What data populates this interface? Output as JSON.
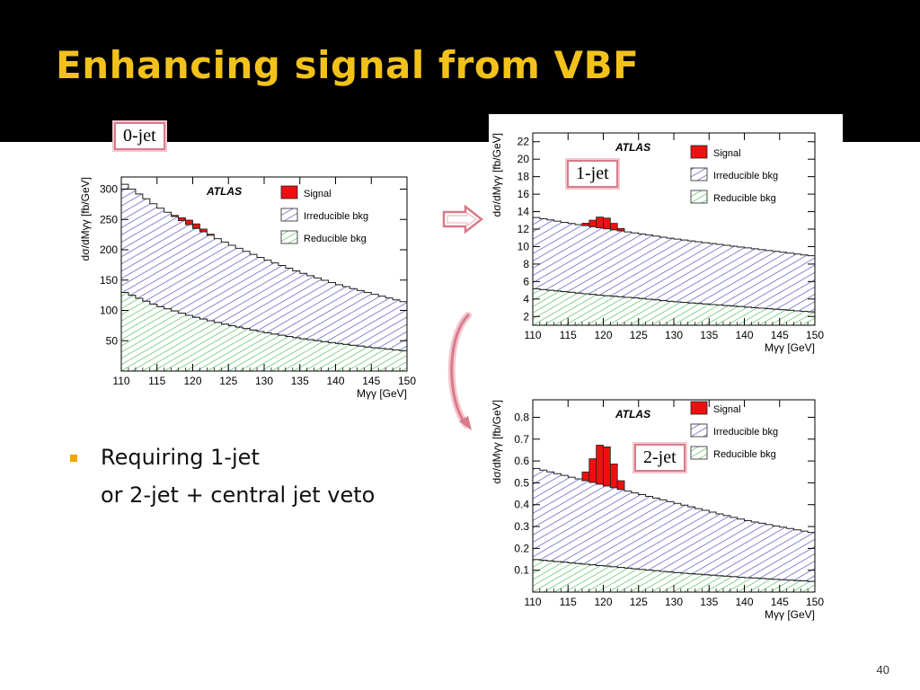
{
  "slide": {
    "title": "Enhancing signal from VBF",
    "bullet": {
      "line1": "Requiring 1-jet",
      "line2": "or 2-jet + central jet veto"
    },
    "page_number": "40",
    "colors": {
      "header_bg": "#000000",
      "title": "#F2C21B",
      "bullet": "#F2A600",
      "arrow": "#D97B8A"
    }
  },
  "chart_data": [
    {
      "type": "area",
      "label_box": "0-jet",
      "experiment": "ATLAS",
      "xlabel": "Mγγ [GeV]",
      "ylabel": "dσ/dMγγ [fb/GeV]",
      "xlim": [
        110,
        150
      ],
      "ylim": [
        0,
        320
      ],
      "xticks": [
        "110",
        "115",
        "120",
        "125",
        "130",
        "135",
        "140",
        "145",
        "150"
      ],
      "yticks": [
        "50",
        "100",
        "150",
        "200",
        "250",
        "300"
      ],
      "legend": [
        "Signal",
        "Irreducible bkg",
        "Reducible bkg"
      ],
      "x": [
        110,
        115,
        120,
        125,
        130,
        135,
        140,
        145,
        150
      ],
      "series": [
        {
          "name": "Reducible bkg",
          "values": [
            132,
            108,
            90,
            76,
            64,
            54,
            46,
            39,
            33
          ]
        },
        {
          "name": "Irreducible bkg",
          "values": [
            312,
            272,
            238,
            210,
            185,
            163,
            144,
            128,
            113
          ]
        },
        {
          "name": "Signal",
          "values": [
            0,
            0,
            8,
            0,
            0,
            0,
            0,
            0,
            0
          ]
        }
      ]
    },
    {
      "type": "area",
      "label_box": "1-jet",
      "experiment": "ATLAS",
      "xlabel": "Mγγ [GeV]",
      "ylabel": "dσ/dMγγ [fb/GeV]",
      "xlim": [
        110,
        150
      ],
      "ylim": [
        1,
        23
      ],
      "xticks": [
        "110",
        "115",
        "120",
        "125",
        "130",
        "135",
        "140",
        "145",
        "150"
      ],
      "yticks": [
        "2",
        "4",
        "6",
        "8",
        "10",
        "12",
        "14",
        "16",
        "18",
        "20",
        "22"
      ],
      "legend": [
        "Signal",
        "Irreducible bkg",
        "Reducible bkg"
      ],
      "x": [
        110,
        115,
        120,
        125,
        130,
        135,
        140,
        145,
        150
      ],
      "series": [
        {
          "name": "Reducible bkg",
          "values": [
            5.2,
            4.8,
            4.4,
            4.1,
            3.7,
            3.4,
            3.1,
            2.8,
            2.5
          ]
        },
        {
          "name": "Irreducible bkg",
          "values": [
            13.4,
            12.7,
            12.1,
            11.5,
            10.9,
            10.4,
            9.9,
            9.4,
            8.9
          ]
        },
        {
          "name": "Signal",
          "values": [
            0,
            0,
            1.3,
            0,
            0,
            0,
            0,
            0,
            0
          ]
        }
      ]
    },
    {
      "type": "area",
      "label_box": "2-jet",
      "experiment": "ATLAS",
      "xlabel": "Mγγ [GeV]",
      "ylabel": "dσ/dMγγ [fb/GeV]",
      "xlim": [
        110,
        150
      ],
      "ylim": [
        0,
        0.88
      ],
      "xticks": [
        "110",
        "115",
        "120",
        "125",
        "130",
        "135",
        "140",
        "145",
        "150"
      ],
      "yticks": [
        "0.1",
        "0.2",
        "0.3",
        "0.4",
        "0.5",
        "0.6",
        "0.7",
        "0.8"
      ],
      "legend": [
        "Signal",
        "Irreducible bkg",
        "Reducible bkg"
      ],
      "x": [
        110,
        115,
        120,
        125,
        130,
        135,
        140,
        145,
        150
      ],
      "series": [
        {
          "name": "Reducible bkg",
          "values": [
            0.15,
            0.135,
            0.12,
            0.105,
            0.09,
            0.078,
            0.067,
            0.057,
            0.048
          ]
        },
        {
          "name": "Irreducible bkg",
          "values": [
            0.57,
            0.53,
            0.49,
            0.45,
            0.41,
            0.37,
            0.33,
            0.3,
            0.27
          ]
        },
        {
          "name": "Signal",
          "values": [
            0,
            0,
            0.19,
            0,
            0,
            0,
            0,
            0,
            0
          ]
        }
      ]
    }
  ]
}
